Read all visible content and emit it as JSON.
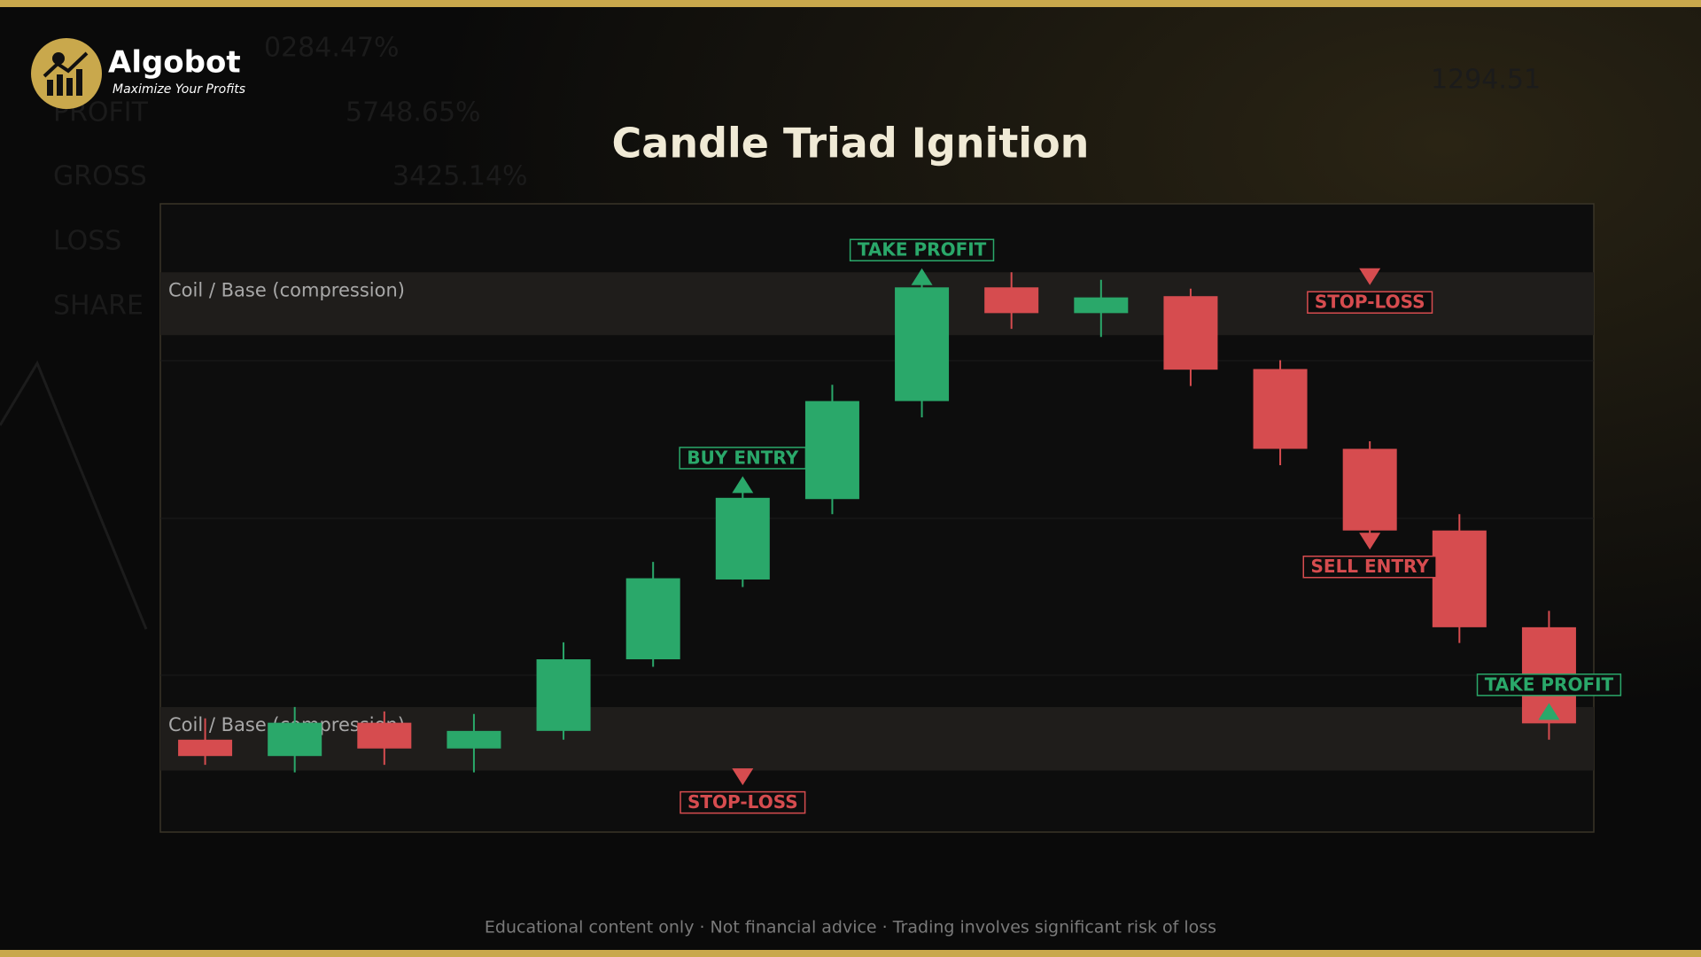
{
  "brand": {
    "name": "Algobot",
    "tagline": "Maximize Your Profits"
  },
  "background_text": [
    "0284.47%",
    "PROFIT",
    "5748.65%",
    "GROSS",
    "3425.14%",
    "LOSS",
    "SHARE",
    "1294.51"
  ],
  "footer": "Educational content only  ·  Not financial advice  ·  Trading involves significant risk of loss",
  "chart_data": {
    "type": "candlestick",
    "title": "Candle Triad Ignition",
    "up_color": "#2aa86a",
    "down_color": "#d64c4f",
    "ylim": [
      0,
      100
    ],
    "open": [
      14.7,
      12.1,
      17.4,
      13.3,
      16.1,
      27.5,
      40.2,
      53.0,
      68.6,
      86.7,
      82.6,
      85.3,
      73.7,
      61.0,
      48.0,
      32.6
    ],
    "high": [
      18.1,
      19.9,
      19.2,
      18.8,
      30.2,
      43.0,
      55.6,
      71.2,
      89.3,
      89.1,
      87.9,
      86.5,
      75.1,
      62.2,
      50.6,
      35.2
    ],
    "low": [
      10.7,
      9.5,
      10.7,
      9.5,
      14.7,
      26.3,
      39.0,
      50.6,
      66.0,
      80.1,
      78.8,
      71.0,
      58.4,
      46.6,
      30.1,
      14.7
    ],
    "close": [
      12.1,
      17.4,
      13.3,
      16.1,
      27.5,
      40.4,
      53.2,
      68.6,
      86.7,
      82.6,
      85.1,
      73.6,
      61.0,
      48.0,
      32.6,
      17.3
    ],
    "zones": [
      {
        "label": "Coil / Base (compression)",
        "range": [
          79.1,
          89.1
        ]
      },
      {
        "label": "Coil / Base (compression)",
        "range": [
          9.8,
          19.9
        ]
      }
    ],
    "annotations": [
      {
        "text": "TAKE PROFIT",
        "candle": 8,
        "level": 88.4,
        "direction": "up",
        "color": "#2aa86a"
      },
      {
        "text": "BUY ENTRY",
        "candle": 6,
        "level": 55.3,
        "direction": "up",
        "color": "#2aa86a"
      },
      {
        "text": "STOP-LOSS",
        "candle": 6,
        "level": 8.8,
        "direction": "down",
        "color": "#d64c4f"
      },
      {
        "text": "STOP-LOSS",
        "candle": 13,
        "level": 88.4,
        "direction": "down",
        "color": "#d64c4f"
      },
      {
        "text": "SELL ENTRY",
        "candle": 13,
        "level": 46.3,
        "direction": "down",
        "color": "#d64c4f"
      },
      {
        "text": "TAKE PROFIT",
        "candle": 15,
        "level": 19.2,
        "direction": "up",
        "color": "#2aa86a"
      }
    ]
  }
}
